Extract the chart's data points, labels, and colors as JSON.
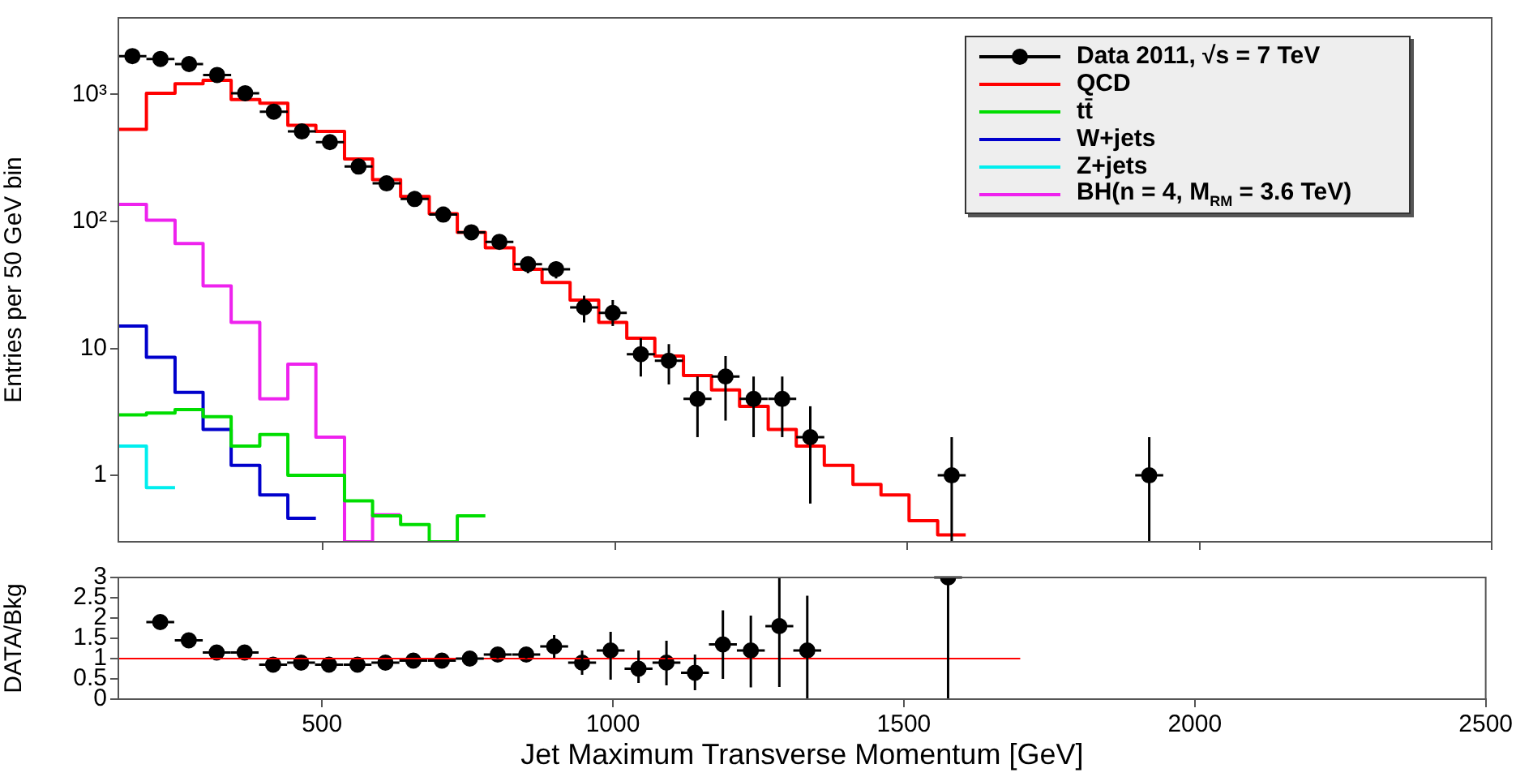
{
  "chart_data": [
    {
      "type": "histogram",
      "ylabel": "Entries per 50 GeV bin",
      "xlim": [
        150,
        2500
      ],
      "ylim": [
        0.3,
        4000
      ],
      "xticks": [
        500,
        1000,
        1500,
        2000,
        2500
      ],
      "yticks": [
        1,
        10,
        {
          "value": 100,
          "label": "10²"
        },
        {
          "value": 1000,
          "label": "10³"
        }
      ],
      "log": true,
      "tick_labels": "y",
      "grid": false,
      "legend": "top right",
      "series": [
        {
          "name": "Data 2011, √s = 7 TeV",
          "type": "scatter",
          "marker": "circle",
          "color": "#000000",
          "x": [
            174,
            222,
            271,
            319,
            367,
            416,
            464,
            512,
            561,
            609,
            657,
            706,
            754,
            802,
            851,
            899,
            947,
            996,
            1044,
            1092,
            1141,
            1189,
            1237,
            1286,
            1334,
            1576,
            1914
          ],
          "values": [
            2000,
            1900,
            1730,
            1420,
            1020,
            730,
            510,
            420,
            270,
            199,
            150,
            113,
            82,
            69,
            46,
            42,
            21,
            19,
            9,
            8,
            4,
            6,
            4,
            4,
            2,
            1,
            1
          ],
          "errors": [
            null,
            null,
            null,
            null,
            null,
            null,
            null,
            null,
            null,
            null,
            null,
            null,
            9,
            8,
            7,
            6.5,
            [
              16,
              26
            ],
            [
              15,
              24
            ],
            [
              6,
              12
            ],
            [
              5.2,
              10.8
            ],
            [
              2,
              6
            ],
            [
              2.7,
              8.7
            ],
            [
              2,
              6
            ],
            [
              2,
              6
            ],
            [
              0.6,
              3.5
            ],
            [
              0.3,
              2
            ],
            [
              0.3,
              2
            ]
          ],
          "xerrors": [
            24,
            24,
            24,
            24,
            24,
            24,
            24,
            24,
            24,
            24,
            24,
            24,
            24,
            24,
            24,
            24,
            24,
            24,
            24,
            24,
            24,
            24,
            24,
            24,
            24,
            24,
            24
          ]
        },
        {
          "name": "QCD",
          "color": "#ff0000",
          "bins": [
            150,
            198,
            247,
            295,
            343,
            392,
            440,
            488,
            537,
            585,
            633,
            682,
            730,
            778,
            827,
            875,
            923,
            972,
            1020,
            1068,
            1117,
            1165,
            1213,
            1262,
            1310,
            1358,
            1407,
            1455,
            1503,
            1552,
            1600
          ],
          "values": [
            530,
            1020,
            1210,
            1290,
            910,
            850,
            570,
            510,
            310,
            213,
            157,
            115,
            82,
            62,
            42,
            33,
            24,
            16,
            12,
            8.7,
            6.1,
            4.7,
            3.5,
            2.3,
            1.7,
            1.2,
            0.85,
            0.7,
            0.44,
            0.34
          ]
        },
        {
          "name": "tt̄",
          "color": "#00dd00",
          "bins": [
            150,
            198,
            247,
            295,
            343,
            392,
            440,
            488,
            537,
            585,
            633,
            682,
            730,
            778
          ],
          "values": [
            3.0,
            3.1,
            3.3,
            2.9,
            1.7,
            2.1,
            1.0,
            1.0,
            0.63,
            0.48,
            0.41,
            null,
            0.48
          ]
        },
        {
          "name": "W+jets",
          "color": "#0000cc",
          "bins": [
            150,
            198,
            247,
            295,
            343,
            392,
            440,
            488
          ],
          "values": [
            15,
            8.5,
            4.5,
            2.3,
            1.2,
            0.7,
            0.46
          ]
        },
        {
          "name": "Z+jets",
          "color": "#00eeee",
          "bins": [
            150,
            198,
            247
          ],
          "values": [
            1.7,
            0.8
          ]
        },
        {
          "name": "BH(n = 4, M$_{RM}$ = 3.6 TeV)",
          "color": "#ee22ee",
          "bins": [
            150,
            198,
            247,
            295,
            343,
            392,
            440,
            488,
            537,
            585,
            633
          ],
          "values": [
            136,
            102,
            67,
            31,
            16,
            4,
            7.5,
            2,
            null,
            0.49
          ]
        }
      ]
    },
    {
      "type": "scatter",
      "ylabel": "DATA/Bkg",
      "xlabel": "Jet Maximum Transverse Momentum [GeV]",
      "xlim": [
        150,
        2500
      ],
      "ylim": [
        0,
        3
      ],
      "xticks": [
        500,
        1000,
        1500,
        2000,
        2500
      ],
      "yticks": [
        0,
        0.5,
        1,
        1.5,
        2,
        2.5,
        3
      ],
      "grid": false,
      "series": [
        {
          "type": "line",
          "color": "#ff0000",
          "x": [
            150,
            1700
          ],
          "values": [
            1,
            1
          ]
        },
        {
          "marker": "circle",
          "color": "#000000",
          "x": [
            222,
            271,
            319,
            367,
            416,
            464,
            512,
            561,
            609,
            657,
            706,
            754,
            802,
            851,
            899,
            947,
            996,
            1044,
            1092,
            1141,
            1189,
            1237,
            1286,
            1334,
            1576
          ],
          "values": [
            1.9,
            1.45,
            1.15,
            1.15,
            0.85,
            0.9,
            0.85,
            0.85,
            0.9,
            0.95,
            0.95,
            1.0,
            1.1,
            1.1,
            1.3,
            0.9,
            1.2,
            0.75,
            0.9,
            0.65,
            1.35,
            1.2,
            1.8,
            1.2,
            3
          ],
          "errors": [
            null,
            null,
            null,
            null,
            null,
            null,
            null,
            null,
            null,
            null,
            null,
            null,
            0.1,
            0.1,
            0.28,
            0.3,
            [
              0.48,
              1.66
            ],
            [
              0.4,
              1.2
            ],
            [
              0.34,
              1.44
            ],
            [
              0.22,
              1.1
            ],
            [
              0.5,
              2.19
            ],
            [
              0.29,
              2.06
            ],
            [
              0.3,
              3
            ],
            [
              0,
              2.55
            ],
            [
              0,
              3
            ]
          ],
          "xerrors": [
            24,
            24,
            24,
            24,
            24,
            24,
            24,
            24,
            24,
            24,
            24,
            24,
            24,
            24,
            24,
            24,
            24,
            24,
            24,
            24,
            24,
            24,
            24,
            24,
            24
          ]
        }
      ]
    }
  ]
}
